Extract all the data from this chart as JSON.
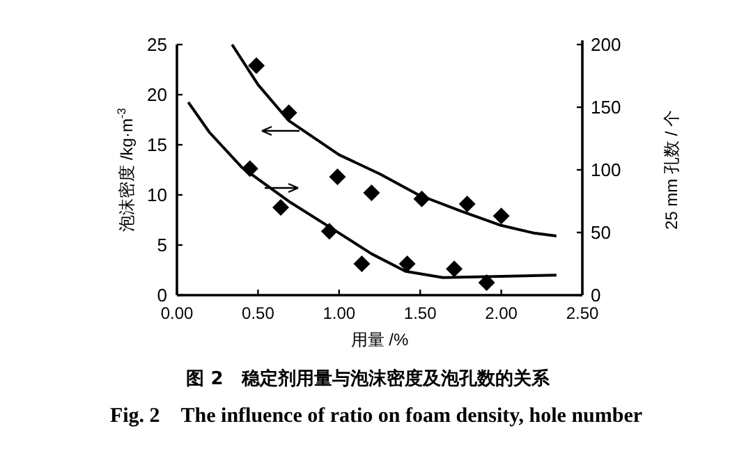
{
  "chart_data": {
    "type": "scatter",
    "title": "图 2　稳定剂用量与泡沫密度及泡孔数的关系",
    "subtitle": "Fig. 2　The influence of ratio on foam density, hole number",
    "xlabel": "用量 /%",
    "ylabel": "泡沫密度 /kg·m$^{-3}$",
    "y2label": "25 mm 孔数 / 个",
    "xlim": [
      0,
      2.5
    ],
    "xticks": [
      {
        "value": 0,
        "label": "0.00"
      },
      {
        "value": 0.5,
        "label": "0.50"
      },
      {
        "value": 1,
        "label": "1.00"
      },
      {
        "value": 1.5,
        "label": "1.50"
      },
      {
        "value": 2,
        "label": "2.00"
      },
      {
        "value": 2.5,
        "label": "2.50"
      }
    ],
    "ylim": [
      0,
      25
    ],
    "yticks": [
      0,
      5,
      10,
      15,
      20,
      25
    ],
    "y2lim": [
      0,
      200
    ],
    "y2ticks": [
      0,
      50,
      100,
      150,
      200
    ],
    "series": [
      {
        "marker": "diamond",
        "color": "#000000",
        "x": [
          0.49,
          0.69,
          0.99,
          1.2,
          1.51,
          1.79,
          2.0
        ],
        "values": [
          22.9,
          18.2,
          11.8,
          10.2,
          9.6,
          9.1,
          7.9
        ]
      },
      {
        "type": "line",
        "line_style": "solid",
        "color": "#000000",
        "x": [
          0.34,
          0.5,
          0.69,
          1.0,
          1.25,
          1.49,
          1.75,
          1.99,
          2.2,
          2.34
        ],
        "values": [
          25,
          21,
          17.4,
          14,
          12.1,
          10,
          8.4,
          7,
          6.2,
          5.9
        ]
      },
      {
        "axis": "y2",
        "marker": "diamond",
        "color": "#000000",
        "x": [
          0.45,
          0.64,
          0.94,
          1.14,
          1.42,
          1.71,
          1.91
        ],
        "values": [
          101,
          70,
          51,
          25,
          25,
          21,
          10
        ]
      },
      {
        "type": "line",
        "axis": "y2",
        "line_style": "solid",
        "color": "#000000",
        "x": [
          0.07,
          0.2,
          0.4,
          0.7,
          0.97,
          1.2,
          1.41,
          1.64,
          2.0,
          2.34
        ],
        "values": [
          154,
          130,
          102,
          74,
          52,
          33,
          19,
          14,
          15,
          16
        ]
      }
    ]
  }
}
